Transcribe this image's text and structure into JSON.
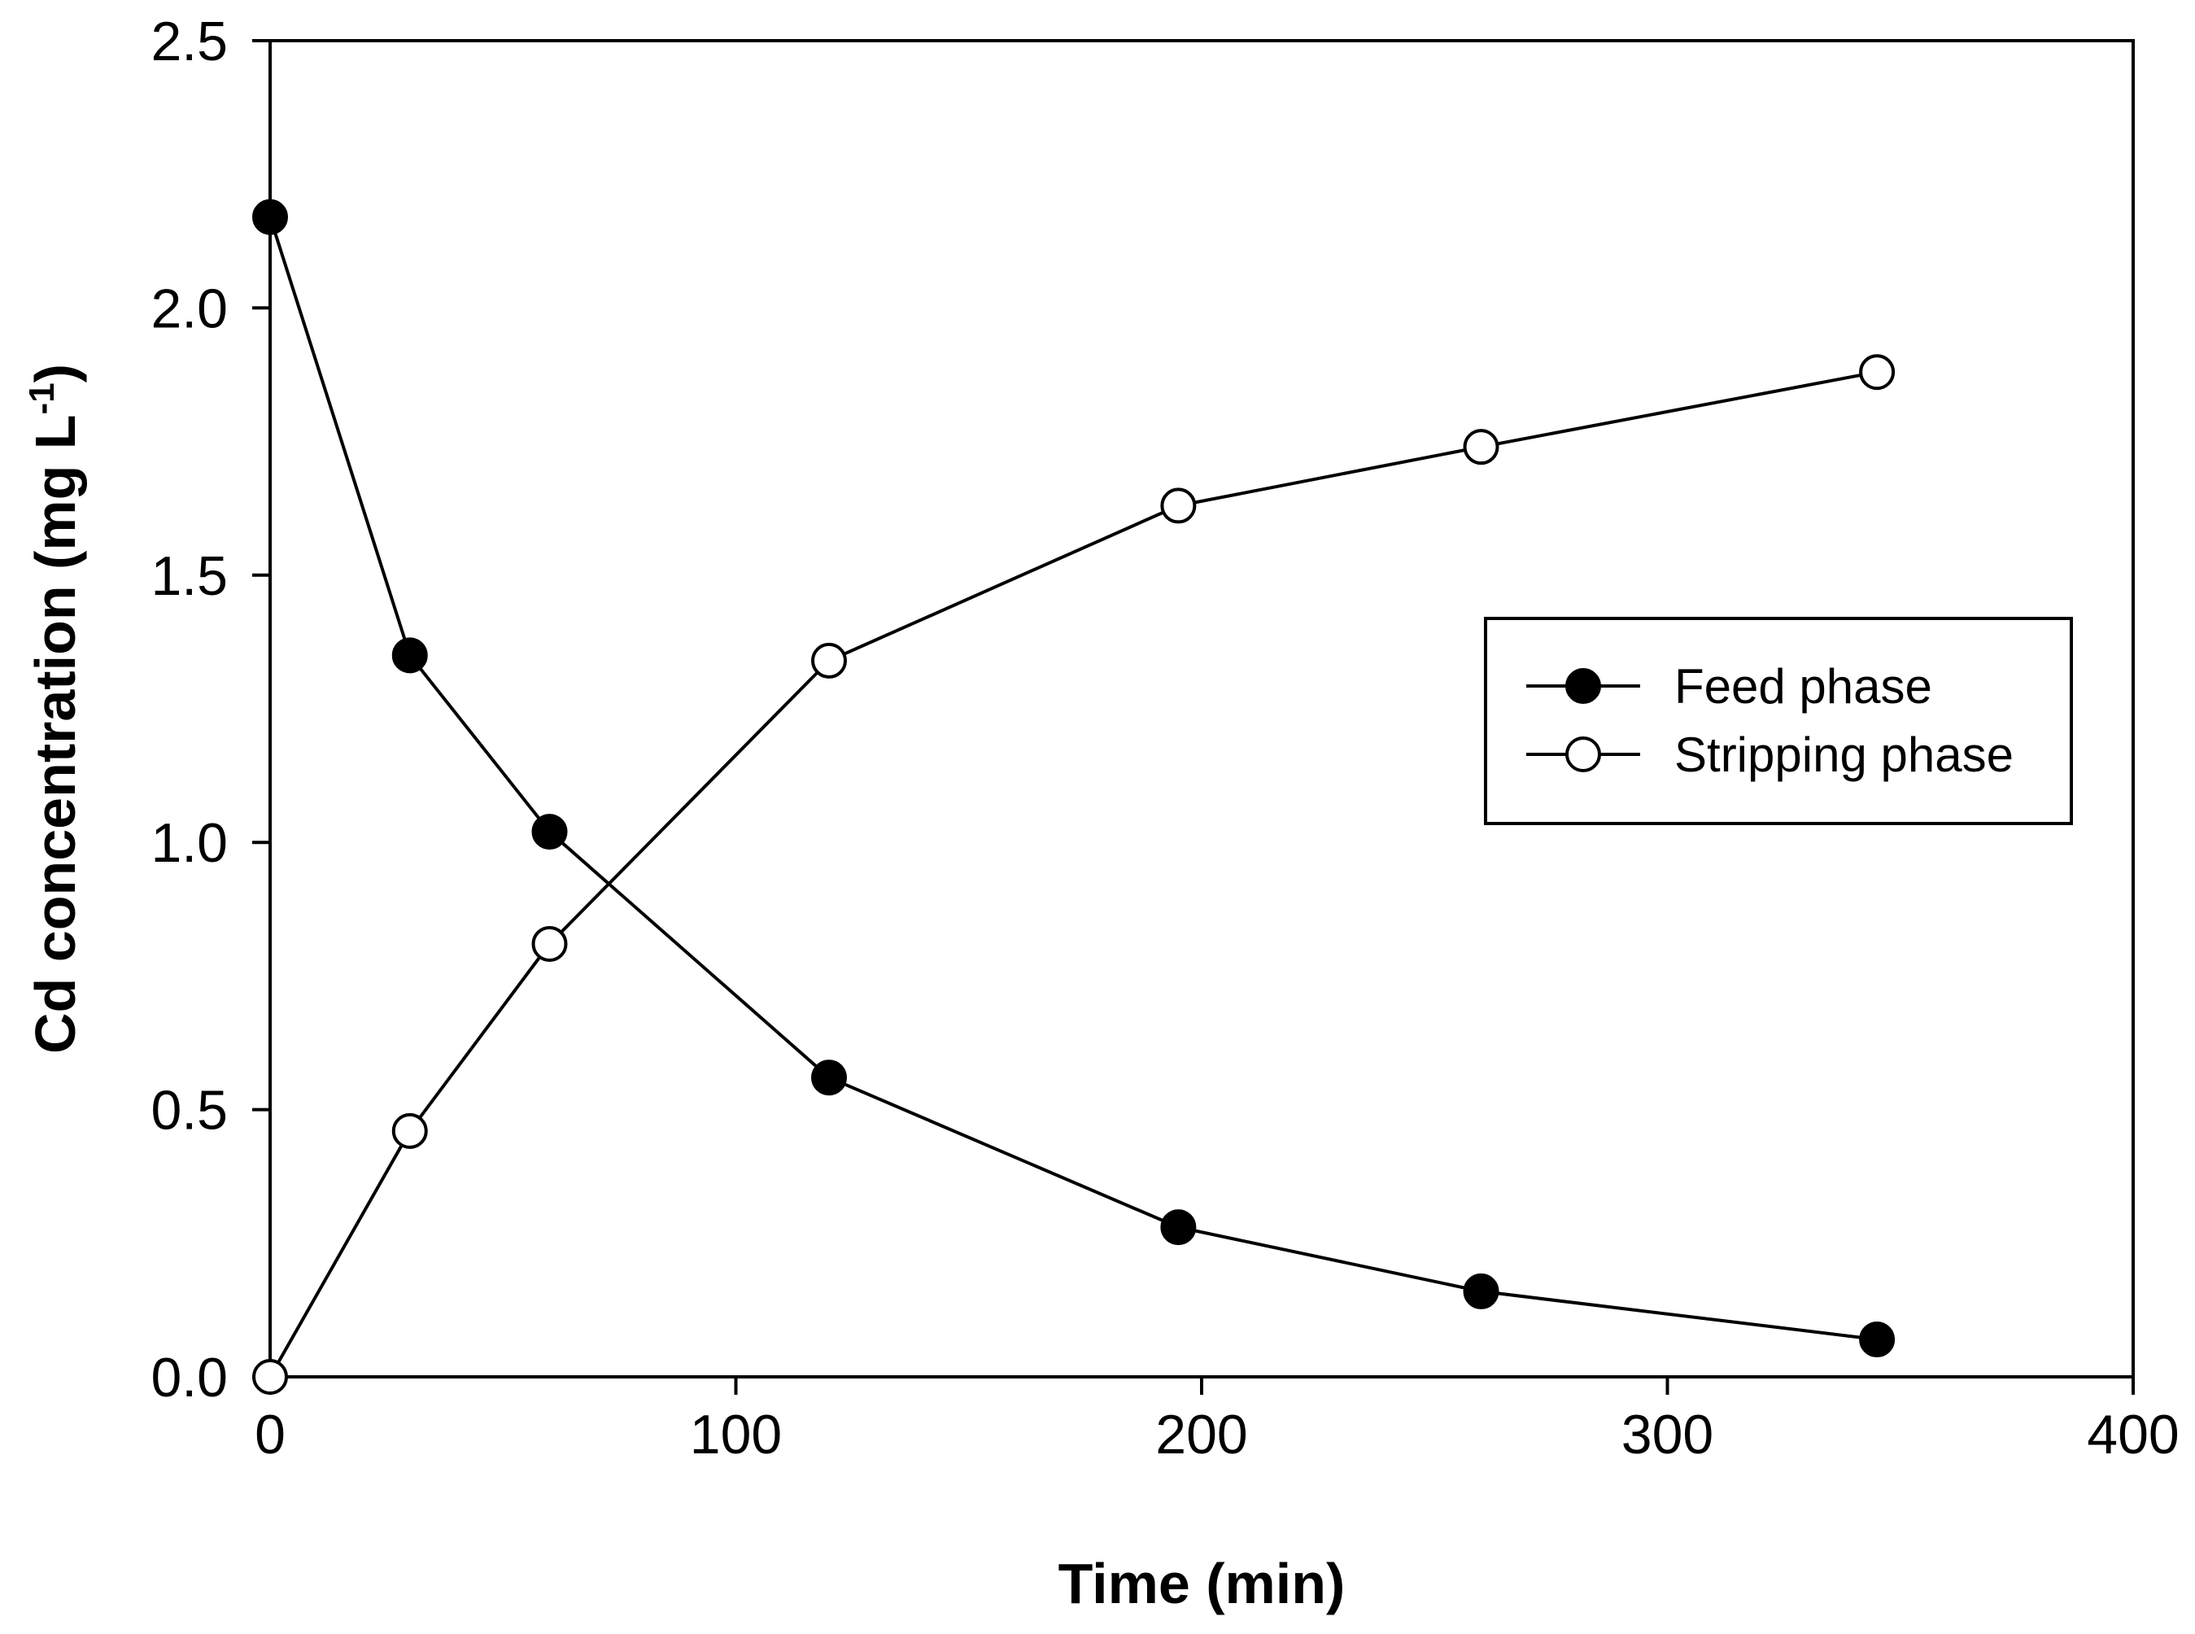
{
  "chart_data": {
    "type": "line",
    "title": "",
    "xlabel": "Time (min)",
    "ylabel": {
      "main": "Cd concentration (mg L",
      "superscript": "-1",
      "close": ")"
    },
    "xlim": [
      0,
      400
    ],
    "ylim": [
      0,
      2.5
    ],
    "x_ticks": [
      0,
      100,
      200,
      300,
      400
    ],
    "x_tick_labels": [
      "0",
      "100",
      "200",
      "300",
      "400"
    ],
    "y_ticks": [
      0,
      0.5,
      1.0,
      1.5,
      2.0,
      2.5
    ],
    "y_tick_labels": [
      "0.0",
      "0.5",
      "1.0",
      "1.5",
      "2.0",
      "2.5"
    ],
    "grid": false,
    "legend_position": "right",
    "series": [
      {
        "name": "Feed phase",
        "marker": "filled-circle",
        "x": [
          0,
          30,
          60,
          120,
          195,
          260,
          345
        ],
        "y": [
          2.17,
          1.35,
          1.02,
          0.56,
          0.28,
          0.16,
          0.07
        ]
      },
      {
        "name": "Stripping phase",
        "marker": "open-circle",
        "x": [
          0,
          30,
          60,
          120,
          195,
          260,
          345
        ],
        "y": [
          0.0,
          0.46,
          0.81,
          1.34,
          1.63,
          1.74,
          1.88
        ]
      }
    ],
    "colors": {
      "line": "#000000",
      "filled_marker": "#000000",
      "open_marker_fill": "#ffffff",
      "background": "#ffffff"
    }
  }
}
